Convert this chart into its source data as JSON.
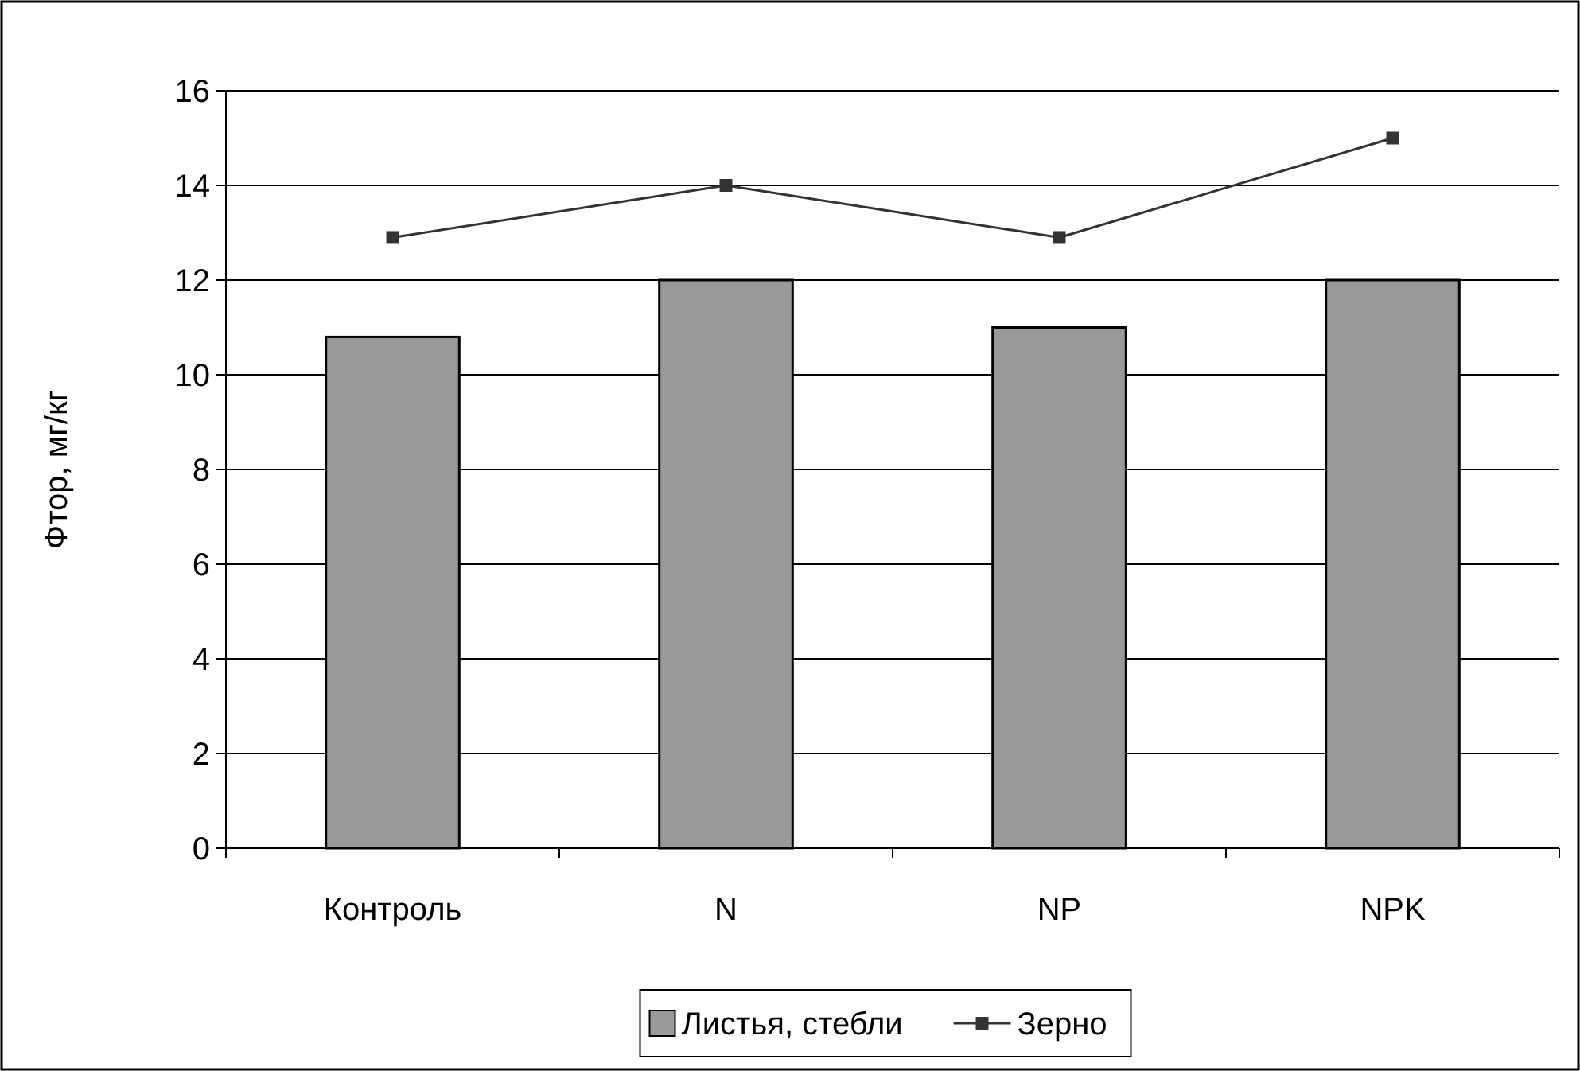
{
  "chart_data": {
    "type": "bar",
    "ylabel": "Фтор, мг/кг",
    "categories": [
      "Контроль",
      "N",
      "NP",
      "NPK"
    ],
    "series": [
      {
        "name": "Листья, стебли",
        "color": "#999999",
        "values": [
          10.8,
          12,
          11,
          12
        ]
      },
      {
        "name": "Зерно",
        "type": "line",
        "color": "#333333",
        "marker": "square",
        "values": [
          12.9,
          14,
          12.9,
          15
        ]
      }
    ],
    "ylim": [
      0,
      16
    ],
    "yticks": [
      0,
      2,
      4,
      6,
      8,
      10,
      12,
      14,
      16
    ],
    "grid": "y",
    "legend": "bottom"
  }
}
